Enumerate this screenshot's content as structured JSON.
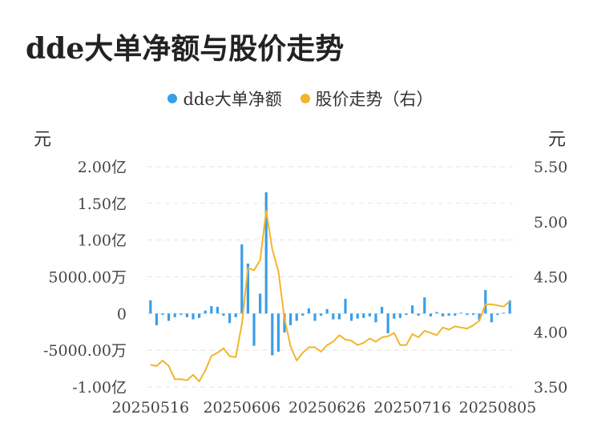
{
  "chart_data": {
    "type": "bar+line",
    "title": "dde大单净额与股价走势",
    "legend": [
      {
        "name": "dde大单净额",
        "color": "#3a9ee8"
      },
      {
        "name": "股价走势（右）",
        "color": "#f2b52b"
      }
    ],
    "left_axis": {
      "unit": "元",
      "ticks": [
        "2.00亿",
        "1.50亿",
        "1.00亿",
        "5000.00万",
        "0",
        "-5000.00万",
        "-1.00亿"
      ],
      "ylim": [
        -100000000,
        200000000
      ]
    },
    "right_axis": {
      "unit": "元",
      "ticks": [
        "5.50",
        "5.00",
        "4.50",
        "4.00",
        "3.50"
      ],
      "ylim": [
        3.5,
        5.5
      ]
    },
    "x_ticks": [
      "20250516",
      "20250606",
      "20250626",
      "20250716",
      "20250805"
    ],
    "x_tick_indices": [
      0,
      15,
      29,
      43,
      57
    ],
    "series": [
      {
        "name": "dde大单净额",
        "kind": "bar",
        "color": "#3a9ee8",
        "values": [
          18000000,
          -16000000,
          -2000000,
          -10000000,
          -5000000,
          -2000000,
          -5000000,
          -8000000,
          -6000000,
          4000000,
          10000000,
          9000000,
          -3000000,
          -13000000,
          -5000000,
          94000000,
          68000000,
          -44000000,
          27000000,
          165000000,
          -57000000,
          -52000000,
          -26000000,
          -16000000,
          -10000000,
          -3000000,
          7000000,
          -10000000,
          -3000000,
          6000000,
          -8000000,
          -8000000,
          20000000,
          -10000000,
          -7000000,
          -6000000,
          -4000000,
          -12000000,
          9000000,
          -27000000,
          -7000000,
          -6000000,
          -2000000,
          11000000,
          -3000000,
          22000000,
          -4000000,
          2000000,
          -4000000,
          -3000000,
          -3000000,
          1000000,
          -2000000,
          -2000000,
          -9000000,
          32000000,
          -12000000,
          -2000000,
          1000000,
          18000000
        ]
      },
      {
        "name": "股价走势（右）",
        "kind": "line",
        "color": "#f2b52b",
        "values": [
          3.7,
          3.69,
          3.74,
          3.69,
          3.57,
          3.57,
          3.56,
          3.61,
          3.55,
          3.65,
          3.78,
          3.81,
          3.85,
          3.78,
          3.77,
          4.07,
          4.58,
          4.56,
          4.65,
          5.1,
          4.75,
          4.55,
          4.12,
          3.87,
          3.74,
          3.81,
          3.86,
          3.86,
          3.82,
          3.88,
          3.91,
          3.97,
          3.93,
          3.92,
          3.88,
          3.9,
          3.94,
          3.91,
          3.95,
          3.96,
          3.99,
          3.88,
          3.88,
          3.98,
          3.95,
          4.01,
          3.99,
          3.97,
          4.04,
          4.02,
          4.05,
          4.04,
          4.03,
          4.06,
          4.1,
          4.25,
          4.25,
          4.24,
          4.23,
          4.28
        ]
      }
    ]
  }
}
